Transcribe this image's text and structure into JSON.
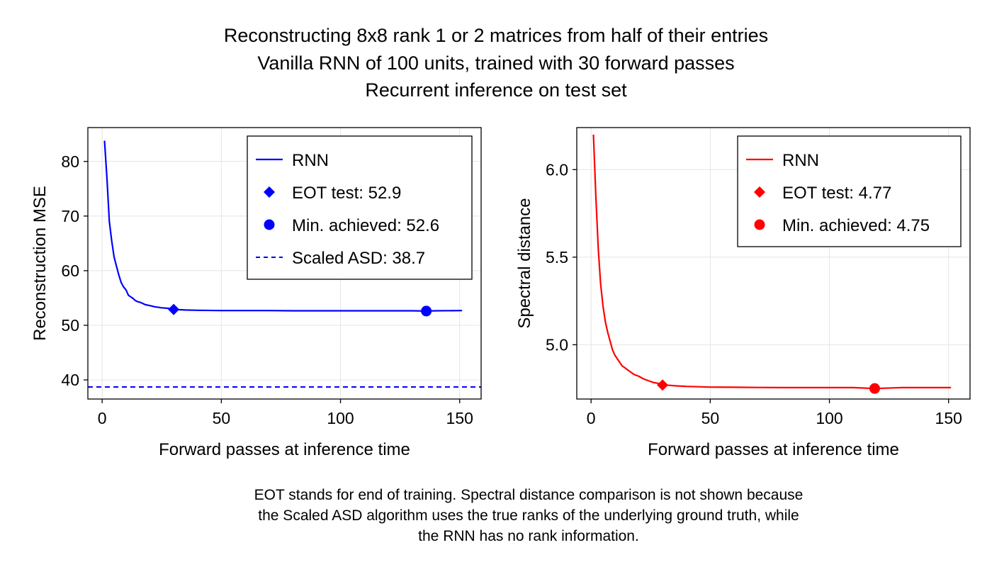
{
  "title_lines": [
    "Reconstructing 8x8 rank 1 or 2 matrices from half of their entries",
    "Vanilla RNN of 100 units, trained with 30 forward passes",
    "Recurrent inference on test set"
  ],
  "caption_lines": [
    "EOT stands for end of training. Spectral distance comparison is not shown because",
    "the Scaled ASD algorithm uses the true ranks of the underlying ground truth, while",
    "the RNN has no rank information."
  ],
  "chart_data": [
    {
      "type": "line",
      "xlabel": "Forward passes at inference time",
      "ylabel": "Reconstruction MSE",
      "xlim": [
        -6,
        159
      ],
      "ylim": [
        36.5,
        86.2
      ],
      "xticks": [
        0,
        50,
        100,
        150
      ],
      "yticks": [
        40,
        50,
        60,
        70,
        80
      ],
      "grid": true,
      "legend_position": "top-right",
      "color": "#0000ff",
      "series": [
        {
          "name": "RNN",
          "x": [
            1,
            2,
            3,
            4,
            5,
            6,
            7,
            8,
            9,
            10,
            11,
            12,
            13,
            14,
            15,
            16,
            17,
            18,
            19,
            20,
            22,
            25,
            28,
            30,
            35,
            40,
            50,
            60,
            70,
            80,
            90,
            100,
            110,
            120,
            130,
            136,
            140,
            151
          ],
          "y": [
            83.8,
            77.0,
            69.0,
            65.5,
            62.5,
            60.8,
            59.2,
            57.8,
            57.0,
            56.5,
            55.5,
            55.2,
            54.9,
            54.5,
            54.3,
            54.2,
            54.0,
            53.8,
            53.7,
            53.6,
            53.4,
            53.2,
            53.1,
            52.9,
            52.8,
            52.75,
            52.7,
            52.7,
            52.7,
            52.65,
            52.65,
            52.65,
            52.65,
            52.65,
            52.65,
            52.6,
            52.65,
            52.7
          ]
        }
      ],
      "markers": [
        {
          "name": "EOT test",
          "label": "EOT test: 52.9",
          "shape": "diamond",
          "x": 30,
          "y": 52.9
        },
        {
          "name": "Min. achieved",
          "label": "Min. achieved: 52.6",
          "shape": "circle",
          "x": 136,
          "y": 52.6
        }
      ],
      "hlines": [
        {
          "name": "Scaled ASD",
          "label": "Scaled ASD: 38.7",
          "y": 38.7,
          "style": "dashed"
        }
      ],
      "legend_entries": [
        "RNN",
        "EOT test: 52.9",
        "Min. achieved: 52.6",
        "Scaled ASD: 38.7"
      ]
    },
    {
      "type": "line",
      "xlabel": "Forward passes at inference time",
      "ylabel": "Spectral distance",
      "xlim": [
        -6,
        159
      ],
      "ylim": [
        4.69,
        6.24
      ],
      "xticks": [
        0,
        50,
        100,
        150
      ],
      "yticks": [
        5.0,
        5.5,
        6.0
      ],
      "ytick_labels": [
        "5.0",
        "5.5",
        "6.0"
      ],
      "grid": true,
      "legend_position": "top-right",
      "color": "#ff0000",
      "series": [
        {
          "name": "RNN",
          "x": [
            1,
            2,
            3,
            4,
            5,
            6,
            7,
            8,
            9,
            10,
            11,
            12,
            13,
            14,
            15,
            16,
            17,
            18,
            20,
            22,
            24,
            26,
            28,
            30,
            33,
            36,
            40,
            45,
            50,
            60,
            70,
            80,
            90,
            100,
            110,
            119,
            130,
            140,
            151
          ],
          "y": [
            6.2,
            5.85,
            5.55,
            5.35,
            5.22,
            5.13,
            5.07,
            5.02,
            4.97,
            4.94,
            4.92,
            4.9,
            4.88,
            4.87,
            4.86,
            4.85,
            4.84,
            4.83,
            4.82,
            4.805,
            4.795,
            4.785,
            4.78,
            4.77,
            4.768,
            4.765,
            4.762,
            4.76,
            4.758,
            4.757,
            4.756,
            4.755,
            4.755,
            4.755,
            4.755,
            4.75,
            4.755,
            4.755,
            4.755
          ]
        }
      ],
      "markers": [
        {
          "name": "EOT test",
          "label": "EOT test: 4.77",
          "shape": "diamond",
          "x": 30,
          "y": 4.77
        },
        {
          "name": "Min. achieved",
          "label": "Min. achieved: 4.75",
          "shape": "circle",
          "x": 119,
          "y": 4.75
        }
      ],
      "hlines": [],
      "legend_entries": [
        "RNN",
        "EOT test: 4.77",
        "Min. achieved: 4.75"
      ]
    }
  ]
}
